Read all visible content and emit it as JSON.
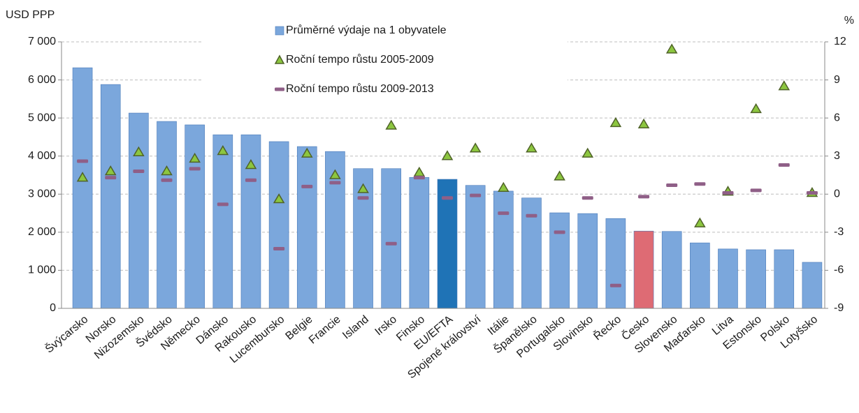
{
  "chart_data": {
    "type": "bar",
    "y_label": "USD PPP",
    "y2_label": "%",
    "categories": [
      "Švýcarsko",
      "Norsko",
      "Nizozemsko",
      "Švédsko",
      "Německo",
      "Dánsko",
      "Rakousko",
      "Lucembursko",
      "Belgie",
      "Francie",
      "Island",
      "Irsko",
      "Finsko",
      "EU/EFTA",
      "Spojené království",
      "Itálie",
      "Španělsko",
      "Portugalsko",
      "Slovinsko",
      "Řecko",
      "Česko",
      "Slovensko",
      "Maďarsko",
      "Litva",
      "Estonsko",
      "Polsko",
      "Lotyšsko"
    ],
    "series": [
      {
        "name": "Průměrné výdaje na 1 obyvatele",
        "mark": "bar",
        "color": "#7ba7dc",
        "bar_colors": [
          "#7ba7dc",
          "#7ba7dc",
          "#7ba7dc",
          "#7ba7dc",
          "#7ba7dc",
          "#7ba7dc",
          "#7ba7dc",
          "#7ba7dc",
          "#7ba7dc",
          "#7ba7dc",
          "#7ba7dc",
          "#7ba7dc",
          "#7ba7dc",
          "#1f73b6",
          "#7ba7dc",
          "#7ba7dc",
          "#7ba7dc",
          "#7ba7dc",
          "#7ba7dc",
          "#7ba7dc",
          "#de6b74",
          "#7ba7dc",
          "#7ba7dc",
          "#7ba7dc",
          "#7ba7dc",
          "#7ba7dc",
          "#7ba7dc"
        ],
        "values": [
          6320,
          5880,
          5130,
          4910,
          4820,
          4560,
          4560,
          4380,
          4250,
          4120,
          3670,
          3670,
          3440,
          3390,
          3230,
          3080,
          2900,
          2510,
          2490,
          2360,
          2030,
          2020,
          1720,
          1560,
          1540,
          1540,
          1210
        ]
      },
      {
        "name": "Roční tempo růstu 2005-2009",
        "mark": "triangle",
        "axis": "y2",
        "color": "#8cc63f",
        "values": [
          1.3,
          1.8,
          3.3,
          1.8,
          2.8,
          3.4,
          2.3,
          -0.4,
          3.2,
          1.5,
          0.4,
          5.4,
          1.7,
          3.0,
          3.6,
          0.5,
          3.6,
          1.4,
          3.2,
          5.6,
          5.5,
          11.4,
          -2.3,
          0.2,
          6.7,
          8.5,
          0.1
        ]
      },
      {
        "name": "Roční tempo růstu 2009-2013",
        "mark": "dash",
        "axis": "y2",
        "color": "#8f5f87",
        "values": [
          2.6,
          1.3,
          1.8,
          1.1,
          2.0,
          -0.8,
          1.1,
          -4.3,
          0.6,
          0.9,
          -0.3,
          -3.9,
          1.3,
          -0.3,
          -0.1,
          -1.5,
          -1.7,
          -3.0,
          -0.3,
          -7.2,
          -0.2,
          0.7,
          0.8,
          0.1,
          0.3,
          2.3,
          0.1
        ]
      }
    ],
    "ylim": [
      0,
      7000
    ],
    "yticks": [
      0,
      {
        "value": 1000,
        "label": "1 000"
      },
      {
        "value": 2000,
        "label": "2 000"
      },
      {
        "value": 3000,
        "label": "3 000"
      },
      {
        "value": 4000,
        "label": "4 000"
      },
      {
        "value": 5000,
        "label": "5 000"
      },
      {
        "value": 6000,
        "label": "6 000"
      },
      {
        "value": 7000,
        "label": "7 000"
      }
    ],
    "y2lim": [
      -9,
      12
    ],
    "y2ticks": [
      -9,
      -6,
      -3,
      0,
      3,
      6,
      9,
      12
    ],
    "grid": true,
    "legend": "top"
  }
}
